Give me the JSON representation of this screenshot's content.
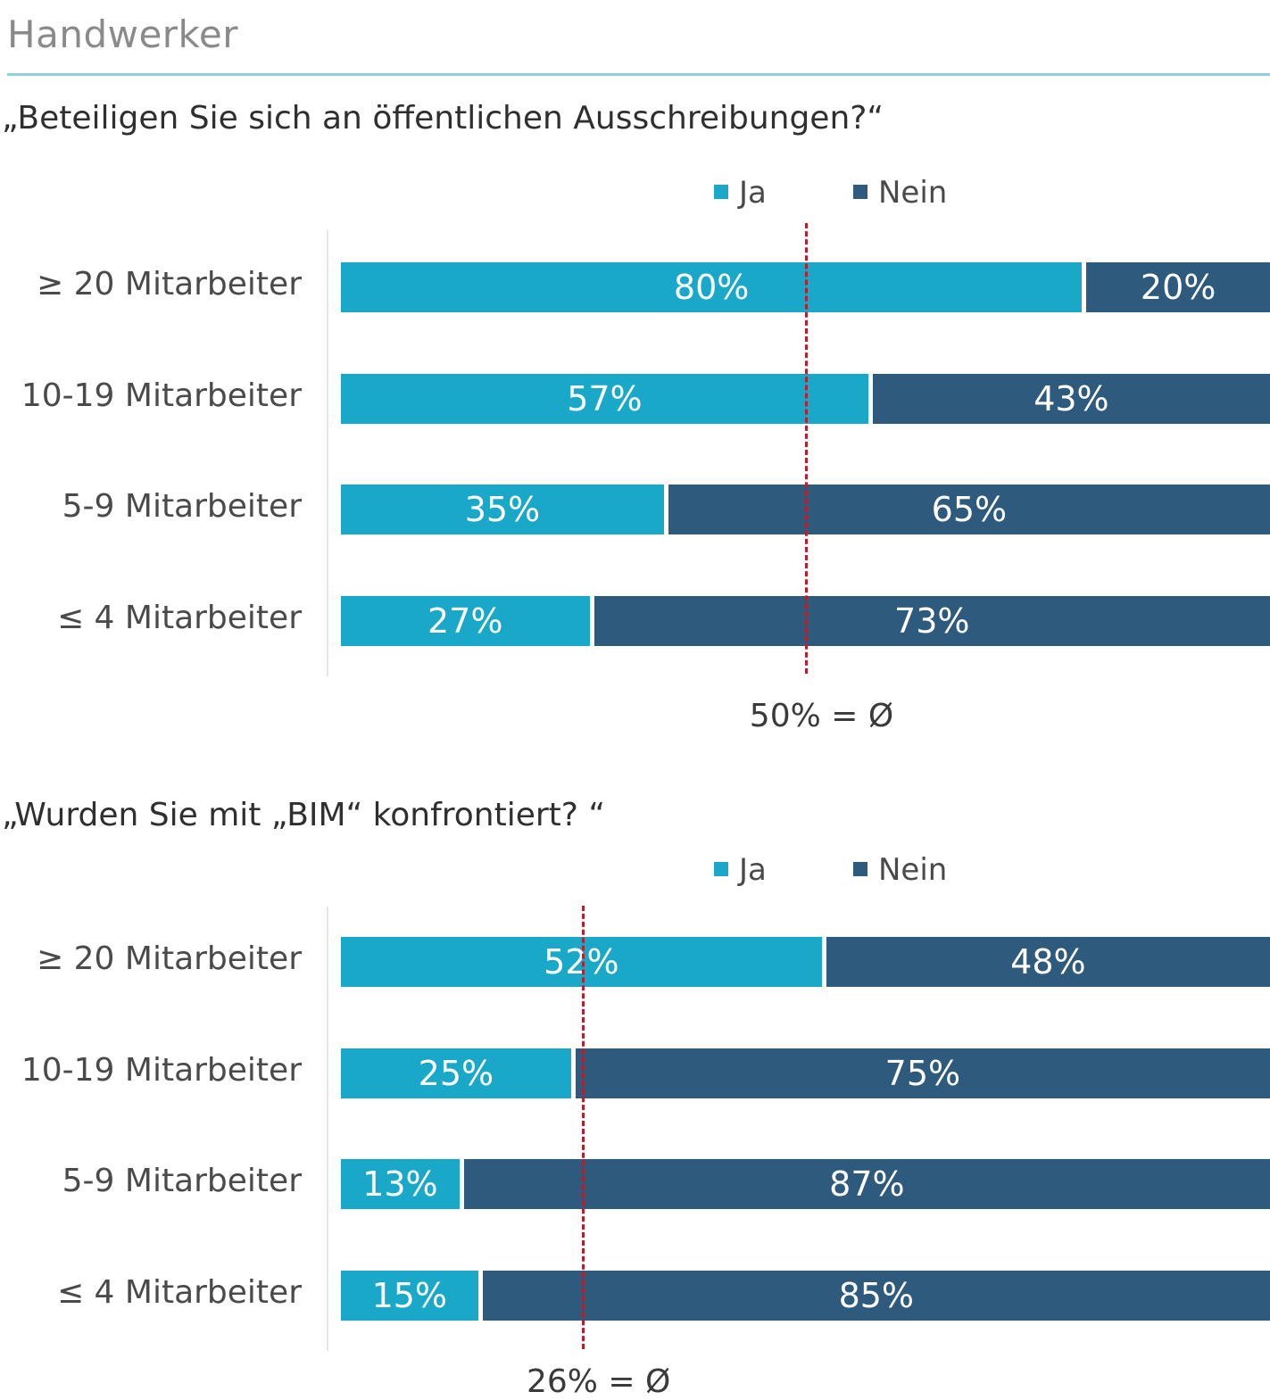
{
  "page": {
    "title": "Handwerker"
  },
  "colors": {
    "ja": "#1aa8c9",
    "nein": "#2e5a7d",
    "average": "#b5202e",
    "rule": "#8fd0e0"
  },
  "chart_data": [
    {
      "type": "bar",
      "stacked": true,
      "orientation": "horizontal",
      "title": "„Beteiligen Sie sich an öffentlichen Ausschreibungen?“",
      "categories": [
        "≥ 20 Mitarbeiter",
        "10-19 Mitarbeiter",
        "5-9 Mitarbeiter",
        "≤ 4 Mitarbeiter"
      ],
      "series": [
        {
          "name": "Ja",
          "values": [
            80,
            57,
            35,
            27
          ]
        },
        {
          "name": "Nein",
          "values": [
            20,
            43,
            65,
            73
          ]
        }
      ],
      "value_labels": {
        "Ja": [
          "80%",
          "57%",
          "35%",
          "27%"
        ],
        "Nein": [
          "20%",
          "43%",
          "65%",
          "73%"
        ]
      },
      "xlim": [
        0,
        100
      ],
      "legend": [
        "Ja",
        "Nein"
      ],
      "legend_position": "top-right",
      "reference_line": {
        "value": 50,
        "label": "50% = Ø"
      }
    },
    {
      "type": "bar",
      "stacked": true,
      "orientation": "horizontal",
      "title": "„Wurden Sie mit „BIM“ konfrontiert? “",
      "categories": [
        "≥ 20 Mitarbeiter",
        "10-19 Mitarbeiter",
        "5-9 Mitarbeiter",
        "≤ 4 Mitarbeiter"
      ],
      "series": [
        {
          "name": "Ja",
          "values": [
            52,
            25,
            13,
            15
          ]
        },
        {
          "name": "Nein",
          "values": [
            48,
            75,
            87,
            85
          ]
        }
      ],
      "value_labels": {
        "Ja": [
          "52%",
          "25%",
          "13%",
          "15%"
        ],
        "Nein": [
          "48%",
          "75%",
          "87%",
          "85%"
        ]
      },
      "xlim": [
        0,
        100
      ],
      "legend": [
        "Ja",
        "Nein"
      ],
      "legend_position": "top-right",
      "reference_line": {
        "value": 26,
        "label": "26% = Ø"
      }
    }
  ]
}
